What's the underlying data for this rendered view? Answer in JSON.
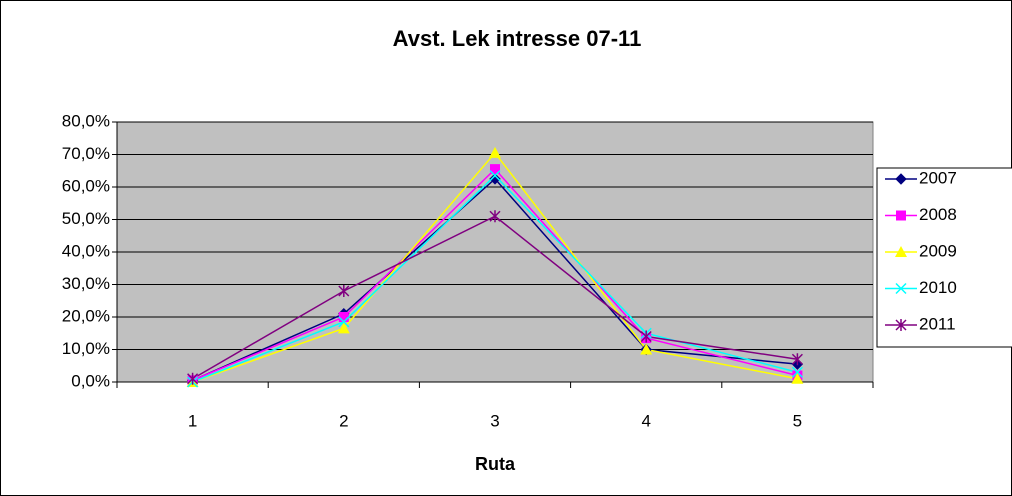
{
  "chart_data": {
    "type": "line",
    "title": "Avst. Lek intresse 07-11",
    "x_label": "Ruta",
    "categories": [
      "1",
      "2",
      "3",
      "4",
      "5"
    ],
    "series": [
      {
        "name": "2007",
        "color": "#000080",
        "marker": "diamond",
        "values": [
          0.5,
          21,
          62.5,
          10,
          5.5
        ]
      },
      {
        "name": "2008",
        "color": "#ff00ff",
        "marker": "square",
        "values": [
          0.5,
          20,
          65.5,
          13.5,
          2
        ]
      },
      {
        "name": "2009",
        "color": "#ffff00",
        "marker": "triangle",
        "values": [
          0,
          16.5,
          70.5,
          10,
          1
        ]
      },
      {
        "name": "2010",
        "color": "#00ffff",
        "marker": "x",
        "values": [
          0,
          18.5,
          63.5,
          15,
          3
        ]
      },
      {
        "name": "2011",
        "color": "#800080",
        "marker": "star",
        "values": [
          1,
          28,
          51,
          14,
          7
        ]
      }
    ],
    "ylim": [
      0,
      80
    ],
    "yticks": [
      {
        "value": 0,
        "label": "0,0%"
      },
      {
        "value": 10,
        "label": "10,0%"
      },
      {
        "value": 20,
        "label": "20,0%"
      },
      {
        "value": 30,
        "label": "30,0%"
      },
      {
        "value": 40,
        "label": "40,0%"
      },
      {
        "value": 50,
        "label": "50,0%"
      },
      {
        "value": 60,
        "label": "60,0%"
      },
      {
        "value": 70,
        "label": "70,0%"
      },
      {
        "value": 80,
        "label": "80,0%"
      }
    ],
    "grid": true,
    "plot_background": "#c0c0c0",
    "legend": "right"
  }
}
